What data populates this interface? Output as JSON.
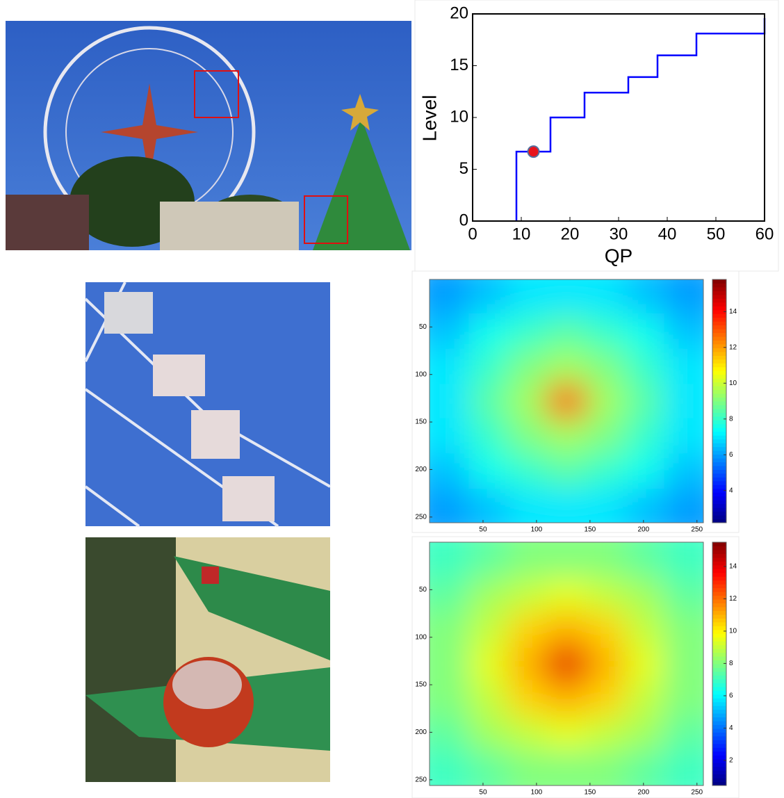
{
  "chart_data": [
    {
      "type": "step",
      "xlabel": "QP",
      "ylabel": "Level",
      "x": [
        9,
        9,
        16,
        16,
        23,
        23,
        32,
        32,
        38,
        38,
        46,
        46,
        60,
        60
      ],
      "series": [
        {
          "color": "#0000ff",
          "values": [
            0,
            6.7,
            6.7,
            10,
            10,
            12.4,
            12.4,
            13.9,
            13.9,
            16,
            16,
            18.1,
            18.1,
            19.6
          ]
        }
      ],
      "marker": {
        "x": 12.5,
        "y": 6.7,
        "color": "#e8141c"
      },
      "xlim": [
        0,
        60
      ],
      "ylim": [
        0,
        20
      ],
      "xticks": [
        0,
        10,
        20,
        30,
        40,
        50,
        60
      ],
      "yticks": [
        0,
        5,
        10,
        15,
        20
      ]
    },
    {
      "type": "heatmap",
      "xlim": [
        0,
        256
      ],
      "ylim": [
        256,
        0
      ],
      "xticks": [
        50,
        100,
        150,
        200,
        250
      ],
      "yticks": [
        50,
        100,
        150,
        200,
        250
      ],
      "clim": [
        2.2,
        15.8
      ],
      "cticks": [
        4,
        6,
        8,
        10,
        12,
        14
      ],
      "values": [
        [
          6,
          6.5,
          7,
          7,
          7,
          6.5,
          6
        ],
        [
          6.5,
          7.5,
          8,
          8.5,
          8,
          7.5,
          6.5
        ],
        [
          7,
          8,
          9,
          9.5,
          9,
          8,
          7
        ],
        [
          7,
          8.5,
          9.5,
          13,
          9.5,
          8.5,
          7
        ],
        [
          7,
          8,
          9,
          9.5,
          9,
          8,
          7
        ],
        [
          6.5,
          7.5,
          8,
          8.5,
          8,
          7.5,
          6.5
        ],
        [
          6,
          6.5,
          7,
          7,
          7,
          6.5,
          6
        ]
      ]
    },
    {
      "type": "heatmap",
      "xlim": [
        0,
        256
      ],
      "ylim": [
        256,
        0
      ],
      "xticks": [
        50,
        100,
        150,
        200,
        250
      ],
      "yticks": [
        50,
        100,
        150,
        200,
        250
      ],
      "clim": [
        0.45,
        15.5
      ],
      "cticks": [
        2,
        4,
        6,
        8,
        10,
        12,
        14
      ],
      "values": [
        [
          7,
          7.5,
          8,
          8,
          8,
          7.5,
          7
        ],
        [
          7.5,
          8.5,
          9,
          9.5,
          9,
          8.5,
          7.5
        ],
        [
          8,
          9,
          10.5,
          11,
          10.5,
          9,
          8
        ],
        [
          8,
          9.5,
          11,
          14,
          11,
          9.5,
          8
        ],
        [
          8,
          9,
          10.5,
          11,
          10.5,
          9,
          8
        ],
        [
          7.5,
          8.5,
          9,
          9.5,
          9,
          8.5,
          7.5
        ],
        [
          7,
          7.5,
          8,
          8,
          8,
          7.5,
          7
        ]
      ]
    }
  ]
}
